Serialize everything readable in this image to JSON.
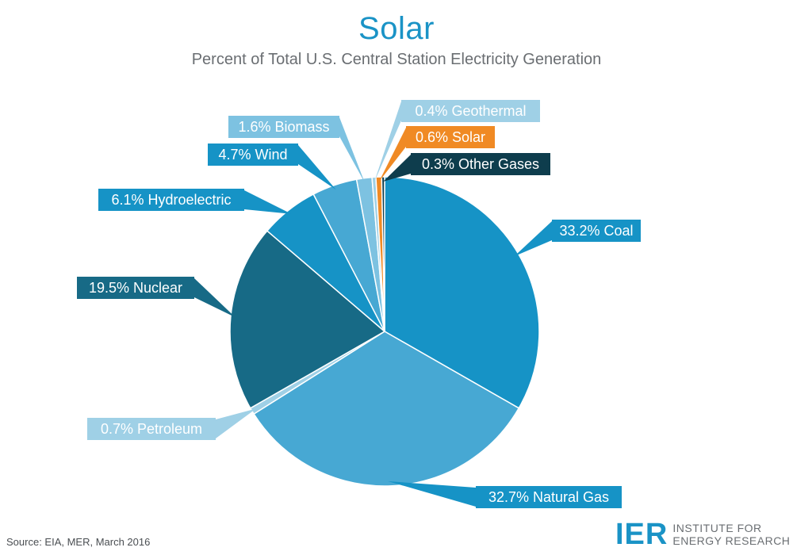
{
  "chart_data": {
    "type": "pie",
    "title": "Solar",
    "subtitle": "Percent of Total U.S. Central Station Electricity Generation",
    "slices": [
      {
        "name": "Coal",
        "value": 33.2,
        "label": "33.2% Coal",
        "color": "#1693c6"
      },
      {
        "name": "Natural Gas",
        "value": 32.7,
        "label": "32.7% Natural Gas",
        "color": "#47a8d3"
      },
      {
        "name": "Petroleum",
        "value": 0.7,
        "label": "0.7% Petroleum",
        "color": "#9fd0e6"
      },
      {
        "name": "Nuclear",
        "value": 19.5,
        "label": "19.5% Nuclear",
        "color": "#176a86"
      },
      {
        "name": "Hydroelectric",
        "value": 6.1,
        "label": "6.1% Hydroelectric",
        "color": "#1693c6"
      },
      {
        "name": "Wind",
        "value": 4.7,
        "label": "4.7% Wind",
        "color": "#47a8d3"
      },
      {
        "name": "Biomass",
        "value": 1.6,
        "label": "1.6% Biomass",
        "color": "#7dc2e1"
      },
      {
        "name": "Geothermal",
        "value": 0.4,
        "label": "0.4% Geothermal",
        "color": "#9fd0e6"
      },
      {
        "name": "Solar",
        "value": 0.6,
        "label": "0.6% Solar",
        "color": "#f08a24"
      },
      {
        "name": "Other Gases",
        "value": 0.3,
        "label": "0.3% Other Gases",
        "color": "#0e3d4d"
      }
    ]
  },
  "footer": {
    "source": "Source: EIA, MER, March 2016",
    "logo_mark": "IER",
    "logo_line1": "INSTITUTE FOR",
    "logo_line2": "ENERGY RESEARCH"
  }
}
